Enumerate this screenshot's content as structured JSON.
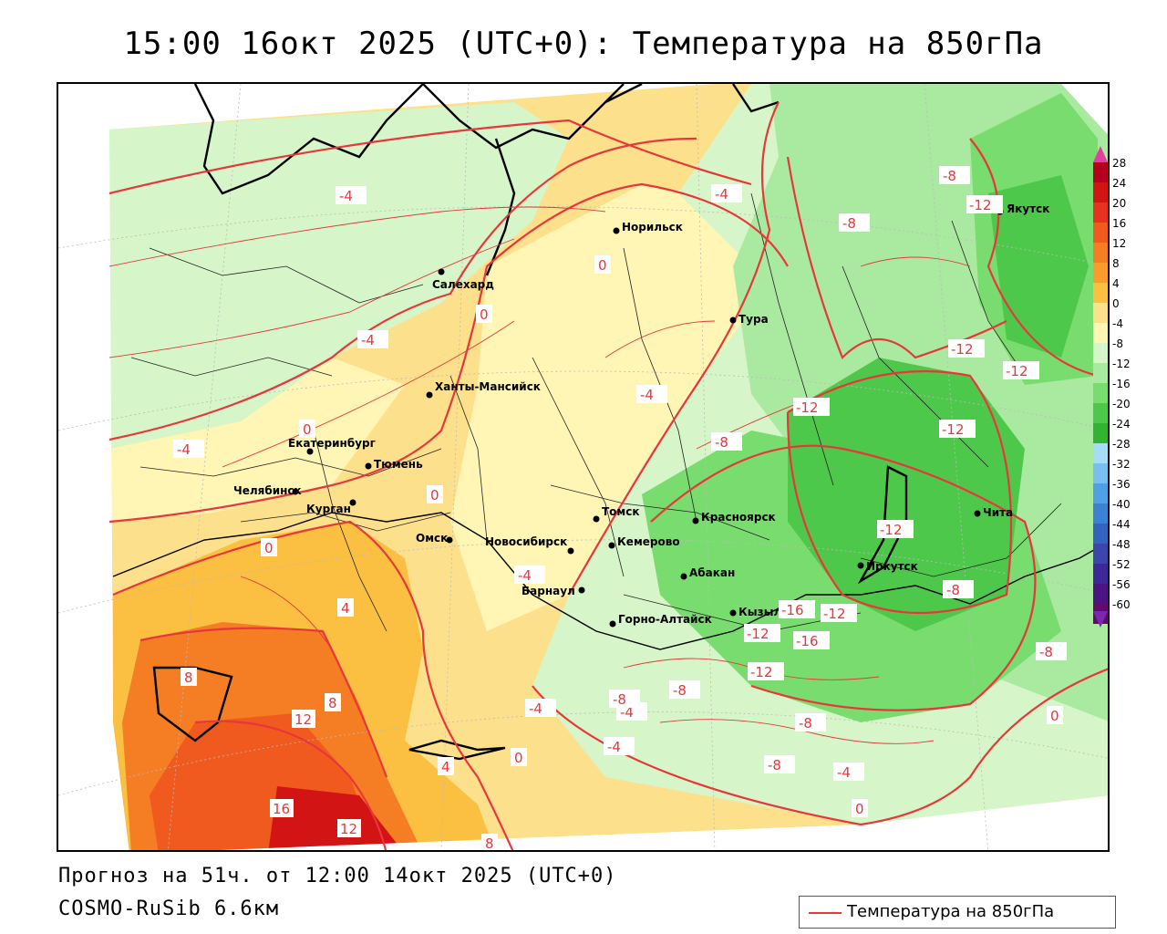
{
  "header": {
    "title": "15:00 16окт 2025 (UTC+0): Температура на 850гПа"
  },
  "footer": {
    "forecast": "Прогноз на 51ч. от 12:00 14окт 2025 (UTC+0)",
    "model": "COSMO-RuSib 6.6км"
  },
  "legend": {
    "line_label": "Температура на 850гПа",
    "line_color": "#e8373a"
  },
  "colorbar": {
    "labels": [
      "28",
      "24",
      "20",
      "16",
      "12",
      "8",
      "4",
      "0",
      "-4",
      "-8",
      "-12",
      "-16",
      "-20",
      "-24",
      "-28",
      "-32",
      "-36",
      "-40",
      "-44",
      "-48",
      "-52",
      "-56",
      "-60"
    ],
    "colors": [
      "#b4001e",
      "#d21414",
      "#e6321e",
      "#f05a1e",
      "#f57d23",
      "#fa9b2d",
      "#fbbf41",
      "#fde08c",
      "#fff5b4",
      "#d6f5c8",
      "#aaeaa0",
      "#78dc6e",
      "#4ec84a",
      "#32b432",
      "#a6dcf5",
      "#78bef0",
      "#50a0e6",
      "#3c82d2",
      "#3264be",
      "#3c46aa",
      "#3c2896",
      "#4b1482",
      "#640a6e"
    ],
    "top_arrow_color": "#e040a0",
    "bottom_arrow_color": "#7a28b0"
  },
  "cities": [
    {
      "name": "Норильск"
    },
    {
      "name": "Салехард"
    },
    {
      "name": "Тура"
    },
    {
      "name": "Якутск"
    },
    {
      "name": "Ханты-Мансийск"
    },
    {
      "name": "Екатеринбург"
    },
    {
      "name": "Тюмень"
    },
    {
      "name": "Челябинск"
    },
    {
      "name": "Курган"
    },
    {
      "name": "Омск"
    },
    {
      "name": "Новосибирск"
    },
    {
      "name": "Томск"
    },
    {
      "name": "Кемерово"
    },
    {
      "name": "Красноярск"
    },
    {
      "name": "Барнаул"
    },
    {
      "name": "Абакан"
    },
    {
      "name": "Горно-Алтайск"
    },
    {
      "name": "Кызыл"
    },
    {
      "name": "Иркутск"
    },
    {
      "name": "Чита"
    }
  ],
  "isotherm_labels": [
    "-4",
    "-4",
    "-4",
    "-4",
    "-4",
    "-4",
    "-4",
    "-4",
    "-4",
    "-4",
    "-8",
    "-8",
    "-8",
    "-8",
    "-8",
    "-8",
    "-8",
    "-8",
    "-8",
    "-12",
    "-12",
    "-12",
    "-12",
    "-12",
    "-12",
    "-12",
    "-12",
    "-12",
    "-16",
    "-16",
    "0",
    "0",
    "0",
    "0",
    "0",
    "0",
    "0",
    "0",
    "4",
    "4",
    "8",
    "8",
    "8",
    "12",
    "12",
    "16"
  ]
}
